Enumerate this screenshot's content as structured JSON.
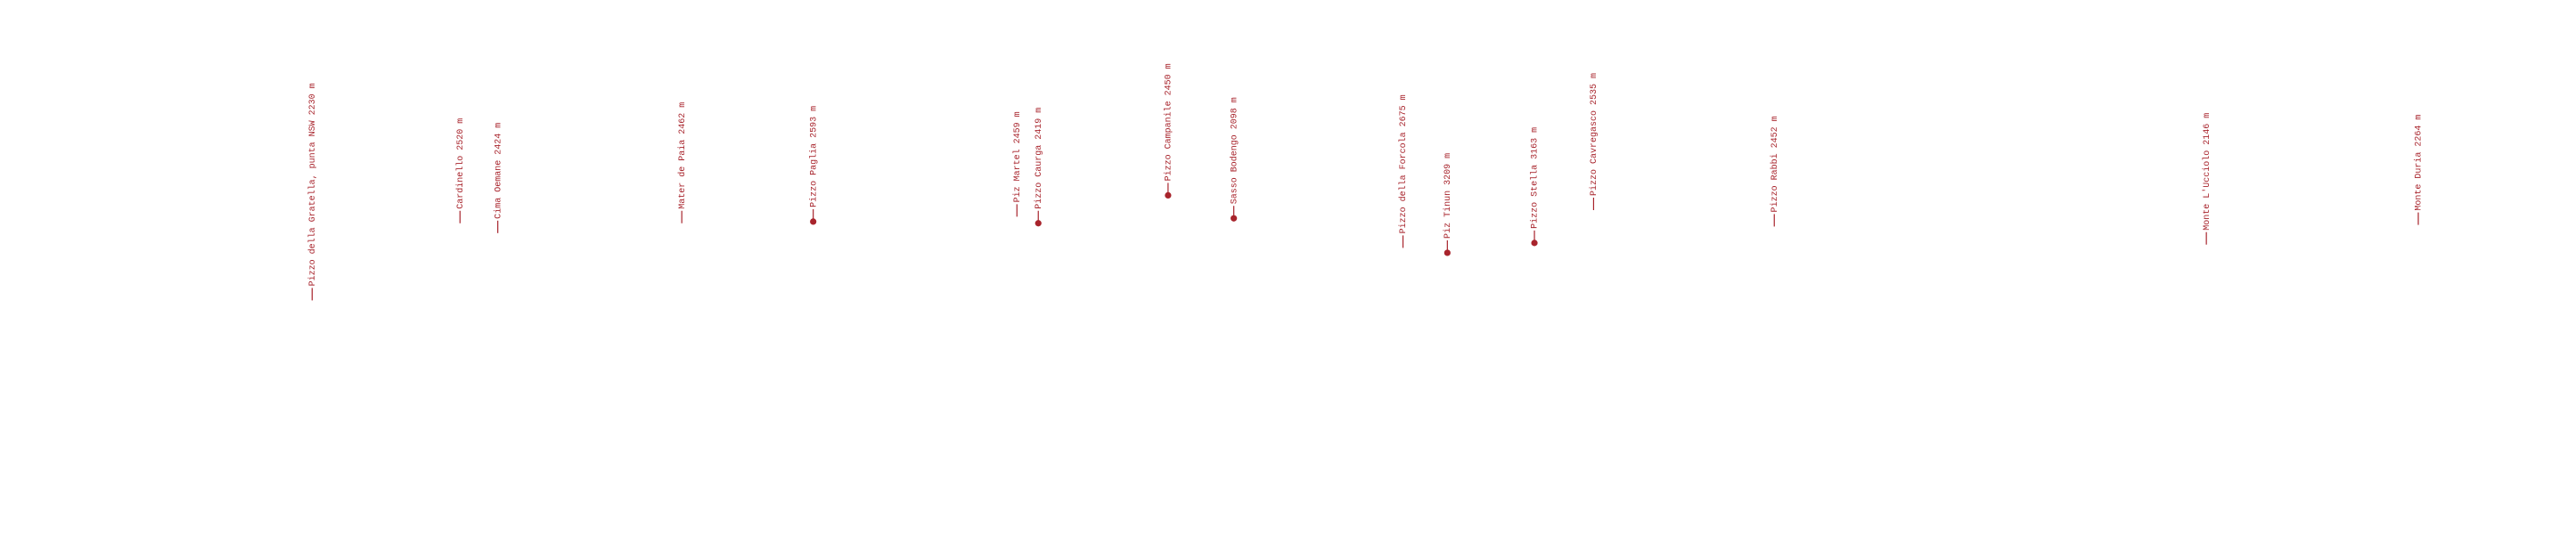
{
  "peaks": [
    {
      "label": "Pizzo della Gratella, punta NSW 2230 m"
    },
    {
      "label": "Cardinello 2520 m"
    },
    {
      "label": "Cima Oemane 2424 m"
    },
    {
      "label": "Mater de Paia 2462 m"
    },
    {
      "label": "Pizzo Paglia 2593 m"
    },
    {
      "label": "Piz Martel 2459 m"
    },
    {
      "label": "Pizzo Caurga 2419 m"
    },
    {
      "label": "Pizzo Campanile 2450 m"
    },
    {
      "label": "Sasso Bodengo 2098 m"
    },
    {
      "label": "Pizzo della Forcola 2675 m"
    },
    {
      "label": "Piz Tinun 3209 m"
    },
    {
      "label": "Pizzo Stella 3163 m"
    },
    {
      "label": "Pizzo Cavregasco 2535 m"
    },
    {
      "label": "Pizzo Rabbi 2452 m"
    },
    {
      "label": "Monte L'Ucciolo 2146 m"
    },
    {
      "label": "Monte Duria 2264 m"
    }
  ]
}
